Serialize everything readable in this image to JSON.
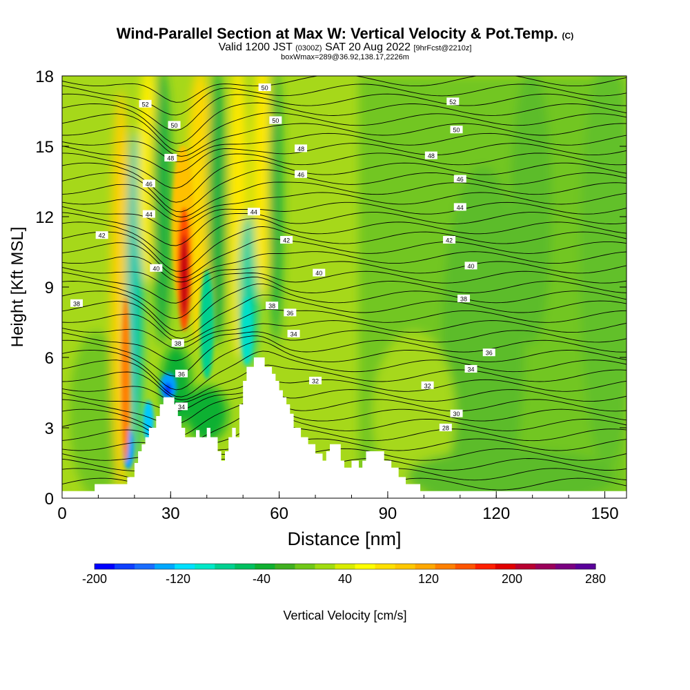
{
  "title": "Wind-Parallel Section at Max W: Vertical Velocity & Pot.Temp.",
  "copyright": "(C)",
  "subtitle": {
    "main_a": "Valid 1200 JST",
    "utc": "(0300Z)",
    "main_b": "SAT 20 Aug 2022",
    "fcst": "[9hrFcst@2210z]"
  },
  "box_info": "boxWmax=289@36.92,138.17,2226m",
  "colorbar": {
    "label": "Vertical Velocity [cm/s]",
    "tick_labels": [
      "-200",
      "-120",
      "-40",
      "40",
      "120",
      "200",
      "280"
    ],
    "colors": [
      "#0000ff",
      "#0f3fff",
      "#1a6dff",
      "#00a8ff",
      "#00e0ff",
      "#00e8c8",
      "#00d090",
      "#00c060",
      "#10b030",
      "#40b020",
      "#70c818",
      "#a0dc10",
      "#d8ec00",
      "#ffff00",
      "#ffe000",
      "#ffc800",
      "#ffa800",
      "#ff8000",
      "#ff5500",
      "#ff2000",
      "#e00000",
      "#b80030",
      "#9a005a",
      "#7a0080",
      "#5a009a"
    ]
  },
  "chart_data": {
    "type": "heatmap",
    "xlabel": "Distance [nm]",
    "ylabel": "Height [Kft MSL]",
    "xlim": [
      0,
      156
    ],
    "ylim": [
      0,
      18
    ],
    "xticks": [
      0,
      30,
      60,
      90,
      120,
      150
    ],
    "yticks": [
      0,
      3,
      6,
      9,
      12,
      15,
      18
    ],
    "field": "Vertical Velocity [cm/s]",
    "range": [
      -200,
      280
    ],
    "max_updraft": {
      "value_cm_s": 289,
      "x": 34,
      "y": 9.5
    },
    "downdraft_core": {
      "value_cm_s": -200,
      "x": 29,
      "y": 5
    },
    "terrain": [
      [
        0,
        0.3
      ],
      [
        9,
        0.3
      ],
      [
        9,
        0.6
      ],
      [
        18,
        0.6
      ],
      [
        18,
        0.9
      ],
      [
        20,
        0.9
      ],
      [
        20,
        1.5
      ],
      [
        21,
        1.5
      ],
      [
        21,
        2
      ],
      [
        22,
        2
      ],
      [
        22,
        2.3
      ],
      [
        23,
        2.3
      ],
      [
        23,
        2.6
      ],
      [
        24,
        2.6
      ],
      [
        24,
        3
      ],
      [
        26,
        3
      ],
      [
        26,
        3.5
      ],
      [
        27,
        3.5
      ],
      [
        27,
        4
      ],
      [
        28,
        4
      ],
      [
        28,
        4.3
      ],
      [
        31,
        4.3
      ],
      [
        31,
        4
      ],
      [
        32,
        4
      ],
      [
        32,
        3.5
      ],
      [
        33,
        3.5
      ],
      [
        33,
        3
      ],
      [
        34,
        3
      ],
      [
        34,
        2.6
      ],
      [
        35,
        2.6
      ],
      [
        35,
        2.6
      ],
      [
        37,
        2.6
      ],
      [
        37,
        2.9
      ],
      [
        38,
        2.9
      ],
      [
        38,
        2.6
      ],
      [
        40,
        2.6
      ],
      [
        40,
        3
      ],
      [
        41,
        3
      ],
      [
        41,
        2.6
      ],
      [
        43,
        2.6
      ],
      [
        43,
        2
      ],
      [
        44,
        2
      ],
      [
        44,
        1.6
      ],
      [
        45,
        1.6
      ],
      [
        45,
        2
      ],
      [
        46,
        2
      ],
      [
        46,
        2.6
      ],
      [
        47,
        2.6
      ],
      [
        47,
        3
      ],
      [
        48,
        3
      ],
      [
        48,
        2.6
      ],
      [
        49,
        2.6
      ],
      [
        49,
        4
      ],
      [
        50,
        4
      ],
      [
        50,
        5
      ],
      [
        51,
        5
      ],
      [
        51,
        5.6
      ],
      [
        53,
        5.6
      ],
      [
        53,
        6
      ],
      [
        56,
        6
      ],
      [
        56,
        5.6
      ],
      [
        58,
        5.6
      ],
      [
        58,
        5.3
      ],
      [
        59,
        5.3
      ],
      [
        59,
        5
      ],
      [
        60,
        5
      ],
      [
        60,
        4.6
      ],
      [
        61,
        4.6
      ],
      [
        61,
        4.3
      ],
      [
        62,
        4.3
      ],
      [
        62,
        4
      ],
      [
        63,
        4
      ],
      [
        63,
        3.6
      ],
      [
        64,
        3.6
      ],
      [
        64,
        3
      ],
      [
        66,
        3
      ],
      [
        66,
        2.6
      ],
      [
        68,
        2.6
      ],
      [
        68,
        2.3
      ],
      [
        70,
        2.3
      ],
      [
        70,
        1.9
      ],
      [
        72,
        1.9
      ],
      [
        72,
        1.6
      ],
      [
        73,
        1.6
      ],
      [
        73,
        2
      ],
      [
        74,
        2
      ],
      [
        74,
        2.3
      ],
      [
        77,
        2.3
      ],
      [
        77,
        1.6
      ],
      [
        78,
        1.6
      ],
      [
        78,
        1.3
      ],
      [
        80,
        1.3
      ],
      [
        80,
        1.6
      ],
      [
        82,
        1.6
      ],
      [
        82,
        1.3
      ],
      [
        83,
        1.3
      ],
      [
        83,
        1.6
      ],
      [
        84,
        1.6
      ],
      [
        84,
        2
      ],
      [
        89,
        2
      ],
      [
        89,
        1.6
      ],
      [
        91,
        1.6
      ],
      [
        91,
        1.3
      ],
      [
        93,
        1.3
      ],
      [
        93,
        0.9
      ],
      [
        95,
        0.9
      ],
      [
        95,
        0.6
      ],
      [
        99,
        0.6
      ],
      [
        99,
        0.3
      ],
      [
        156,
        0.3
      ]
    ],
    "contour_labels": [
      {
        "text": "52",
        "x": 23,
        "y": 16.8
      },
      {
        "text": "50",
        "x": 31,
        "y": 15.9
      },
      {
        "text": "48",
        "x": 30,
        "y": 14.5
      },
      {
        "text": "46",
        "x": 24,
        "y": 13.4
      },
      {
        "text": "44",
        "x": 24,
        "y": 12.1
      },
      {
        "text": "42",
        "x": 11,
        "y": 11.2
      },
      {
        "text": "40",
        "x": 26,
        "y": 9.8
      },
      {
        "text": "38",
        "x": 4,
        "y": 8.3
      },
      {
        "text": "38",
        "x": 32,
        "y": 6.6
      },
      {
        "text": "36",
        "x": 33,
        "y": 5.3
      },
      {
        "text": "34",
        "x": 33,
        "y": 3.9
      },
      {
        "text": "50",
        "x": 56,
        "y": 17.5
      },
      {
        "text": "50",
        "x": 59,
        "y": 16.1
      },
      {
        "text": "48",
        "x": 66,
        "y": 14.9
      },
      {
        "text": "46",
        "x": 66,
        "y": 13.8
      },
      {
        "text": "44",
        "x": 53,
        "y": 12.2
      },
      {
        "text": "42",
        "x": 62,
        "y": 11
      },
      {
        "text": "40",
        "x": 71,
        "y": 9.6
      },
      {
        "text": "38",
        "x": 58,
        "y": 8.2
      },
      {
        "text": "36",
        "x": 63,
        "y": 7.9
      },
      {
        "text": "34",
        "x": 64,
        "y": 7
      },
      {
        "text": "32",
        "x": 70,
        "y": 5
      },
      {
        "text": "52",
        "x": 108,
        "y": 16.9
      },
      {
        "text": "50",
        "x": 109,
        "y": 15.7
      },
      {
        "text": "48",
        "x": 102,
        "y": 14.6
      },
      {
        "text": "46",
        "x": 110,
        "y": 13.6
      },
      {
        "text": "44",
        "x": 110,
        "y": 12.4
      },
      {
        "text": "42",
        "x": 107,
        "y": 11
      },
      {
        "text": "40",
        "x": 113,
        "y": 9.9
      },
      {
        "text": "38",
        "x": 111,
        "y": 8.5
      },
      {
        "text": "36",
        "x": 118,
        "y": 6.2
      },
      {
        "text": "34",
        "x": 113,
        "y": 5.5
      },
      {
        "text": "32",
        "x": 101,
        "y": 4.8
      },
      {
        "text": "30",
        "x": 109,
        "y": 3.6
      },
      {
        "text": "28",
        "x": 106,
        "y": 3
      }
    ]
  }
}
